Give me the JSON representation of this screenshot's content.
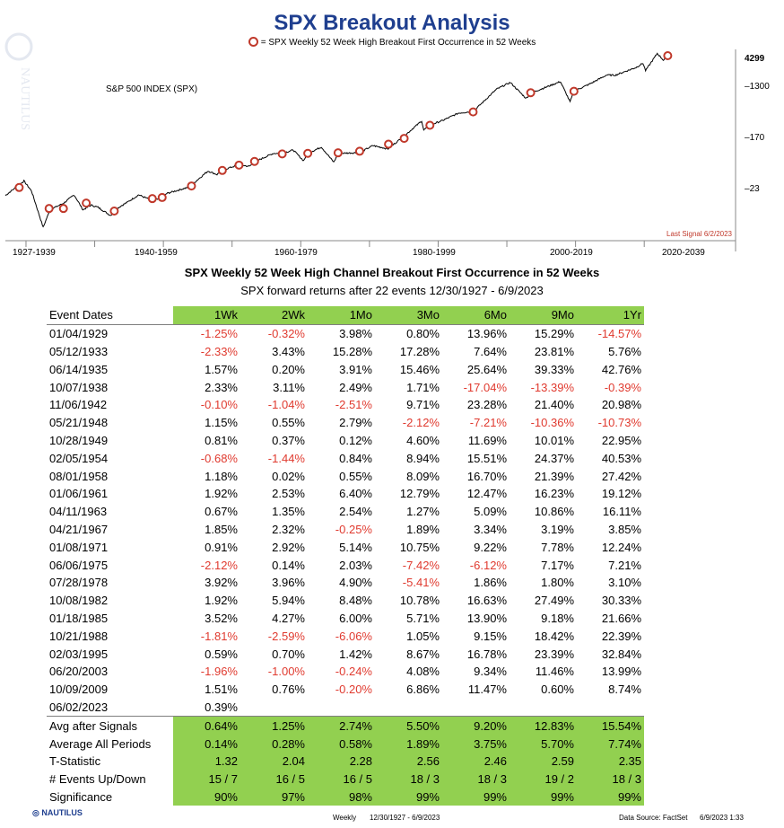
{
  "header": {
    "title": "SPX Breakout Analysis",
    "legend_text": "= SPX Weekly 52 Week High Breakout First Occurrence in 52 Weeks"
  },
  "chart_data": {
    "type": "line",
    "index_label": "S&P 500 INDEX (SPX)",
    "y_scale": "log",
    "y_ticks": [
      "4299",
      "1300",
      "170",
      "23"
    ],
    "x_decades": [
      "1927-1939",
      "1940-1959",
      "1960-1979",
      "1980-1999",
      "2000-2019",
      "2020-2039"
    ],
    "last_signal": "Last Signal 6/2/2023",
    "marker_color": "#c0392b",
    "line_color": "#000000",
    "approx_path": [
      [
        1927.0,
        17.5
      ],
      [
        1929.7,
        31
      ],
      [
        1930.8,
        21
      ],
      [
        1932.5,
        5
      ],
      [
        1933.5,
        10
      ],
      [
        1935.5,
        13
      ],
      [
        1937.0,
        18
      ],
      [
        1938.3,
        10
      ],
      [
        1939.5,
        12
      ],
      [
        1940.5,
        11
      ],
      [
        1942.3,
        8
      ],
      [
        1943.5,
        11
      ],
      [
        1945.0,
        14
      ],
      [
        1946.4,
        18
      ],
      [
        1948.0,
        15
      ],
      [
        1949.5,
        15
      ],
      [
        1950.5,
        19
      ],
      [
        1953.5,
        24
      ],
      [
        1954.0,
        26
      ],
      [
        1956.5,
        46
      ],
      [
        1957.8,
        40
      ],
      [
        1958.5,
        47
      ],
      [
        1961.0,
        59
      ],
      [
        1962.5,
        55
      ],
      [
        1963.3,
        66
      ],
      [
        1966.0,
        92
      ],
      [
        1967.3,
        92
      ],
      [
        1968.9,
        105
      ],
      [
        1970.4,
        69
      ],
      [
        1971.0,
        92
      ],
      [
        1973.0,
        118
      ],
      [
        1974.8,
        65
      ],
      [
        1975.5,
        92
      ],
      [
        1978.6,
        95
      ],
      [
        1980.5,
        125
      ],
      [
        1982.7,
        110
      ],
      [
        1985.0,
        180
      ],
      [
        1987.6,
        330
      ],
      [
        1987.9,
        230
      ],
      [
        1988.8,
        280
      ],
      [
        1990.5,
        330
      ],
      [
        1993.0,
        450
      ],
      [
        1995.1,
        480
      ],
      [
        1998.5,
        1150
      ],
      [
        2000.5,
        1500
      ],
      [
        2002.8,
        800
      ],
      [
        2003.5,
        990
      ],
      [
        2007.8,
        1550
      ],
      [
        2009.2,
        700
      ],
      [
        2009.8,
        1070
      ],
      [
        2012.0,
        1400
      ],
      [
        2014.5,
        2000
      ],
      [
        2015.8,
        2000
      ],
      [
        2018.8,
        2700
      ],
      [
        2019.8,
        3200
      ],
      [
        2020.2,
        2400
      ],
      [
        2021.9,
        4700
      ],
      [
        2022.8,
        3600
      ],
      [
        2023.4,
        4299
      ]
    ],
    "signal_dates": [
      1929.01,
      1933.36,
      1935.45,
      1938.77,
      1942.85,
      1948.39,
      1949.82,
      1954.09,
      1958.58,
      1961.01,
      1963.27,
      1967.3,
      1971.02,
      1975.43,
      1978.57,
      1982.77,
      1985.05,
      1988.8,
      1995.09,
      2003.47,
      2009.77,
      2023.42
    ],
    "signal_levels": [
      24,
      10.5,
      10.5,
      13,
      9.5,
      15.5,
      16.2,
      25.5,
      47,
      58,
      67,
      90,
      92,
      94,
      100,
      132,
      166,
      278,
      470,
      1000,
      1060,
      4299
    ]
  },
  "table": {
    "heading": "SPX Weekly 52 Week High Channel Breakout First Occurrence in 52 Weeks",
    "subheading": "SPX forward returns after 22 events 12/30/1927 - 6/9/2023",
    "columns": [
      "Event Dates",
      "1Wk",
      "2Wk",
      "1Mo",
      "3Mo",
      "6Mo",
      "9Mo",
      "1Yr"
    ],
    "rows": [
      [
        "01/04/1929",
        "-1.25%",
        "-0.32%",
        "3.98%",
        "0.80%",
        "13.96%",
        "15.29%",
        "-14.57%"
      ],
      [
        "05/12/1933",
        "-2.33%",
        "3.43%",
        "15.28%",
        "17.28%",
        "7.64%",
        "23.81%",
        "5.76%"
      ],
      [
        "06/14/1935",
        "1.57%",
        "0.20%",
        "3.91%",
        "15.46%",
        "25.64%",
        "39.33%",
        "42.76%"
      ],
      [
        "10/07/1938",
        "2.33%",
        "3.11%",
        "2.49%",
        "1.71%",
        "-17.04%",
        "-13.39%",
        "-0.39%"
      ],
      [
        "11/06/1942",
        "-0.10%",
        "-1.04%",
        "-2.51%",
        "9.71%",
        "23.28%",
        "21.40%",
        "20.98%"
      ],
      [
        "05/21/1948",
        "1.15%",
        "0.55%",
        "2.79%",
        "-2.12%",
        "-7.21%",
        "-10.36%",
        "-10.73%"
      ],
      [
        "10/28/1949",
        "0.81%",
        "0.37%",
        "0.12%",
        "4.60%",
        "11.69%",
        "10.01%",
        "22.95%"
      ],
      [
        "02/05/1954",
        "-0.68%",
        "-1.44%",
        "0.84%",
        "8.94%",
        "15.51%",
        "24.37%",
        "40.53%"
      ],
      [
        "08/01/1958",
        "1.18%",
        "0.02%",
        "0.55%",
        "8.09%",
        "16.70%",
        "21.39%",
        "27.42%"
      ],
      [
        "01/06/1961",
        "1.92%",
        "2.53%",
        "6.40%",
        "12.79%",
        "12.47%",
        "16.23%",
        "19.12%"
      ],
      [
        "04/11/1963",
        "0.67%",
        "1.35%",
        "2.54%",
        "1.27%",
        "5.09%",
        "10.86%",
        "16.11%"
      ],
      [
        "04/21/1967",
        "1.85%",
        "2.32%",
        "-0.25%",
        "1.89%",
        "3.34%",
        "3.19%",
        "3.85%"
      ],
      [
        "01/08/1971",
        "0.91%",
        "2.92%",
        "5.14%",
        "10.75%",
        "9.22%",
        "7.78%",
        "12.24%"
      ],
      [
        "06/06/1975",
        "-2.12%",
        "0.14%",
        "2.03%",
        "-7.42%",
        "-6.12%",
        "7.17%",
        "7.21%"
      ],
      [
        "07/28/1978",
        "3.92%",
        "3.96%",
        "4.90%",
        "-5.41%",
        "1.86%",
        "1.80%",
        "3.10%"
      ],
      [
        "10/08/1982",
        "1.92%",
        "5.94%",
        "8.48%",
        "10.78%",
        "16.63%",
        "27.49%",
        "30.33%"
      ],
      [
        "01/18/1985",
        "3.52%",
        "4.27%",
        "6.00%",
        "5.71%",
        "13.90%",
        "9.18%",
        "21.66%"
      ],
      [
        "10/21/1988",
        "-1.81%",
        "-2.59%",
        "-6.06%",
        "1.05%",
        "9.15%",
        "18.42%",
        "22.39%"
      ],
      [
        "02/03/1995",
        "0.59%",
        "0.70%",
        "1.42%",
        "8.67%",
        "16.78%",
        "23.39%",
        "32.84%"
      ],
      [
        "06/20/2003",
        "-1.96%",
        "-1.00%",
        "-0.24%",
        "4.08%",
        "9.34%",
        "11.46%",
        "13.99%"
      ],
      [
        "10/09/2009",
        "1.51%",
        "0.76%",
        "-0.20%",
        "6.86%",
        "11.47%",
        "0.60%",
        "8.74%"
      ],
      [
        "06/02/2023",
        "0.39%",
        "",
        "",
        "",
        "",
        "",
        ""
      ]
    ],
    "summary": [
      [
        "Avg after Signals",
        "0.64%",
        "1.25%",
        "2.74%",
        "5.50%",
        "9.20%",
        "12.83%",
        "15.54%"
      ],
      [
        "Average All Periods",
        "0.14%",
        "0.28%",
        "0.58%",
        "1.89%",
        "3.75%",
        "5.70%",
        "7.74%"
      ],
      [
        "T-Statistic",
        "1.32",
        "2.04",
        "2.28",
        "2.56",
        "2.46",
        "2.59",
        "2.35"
      ],
      [
        "# Events Up/Down",
        "15 / 7",
        "16 / 5",
        "16 / 5",
        "18 / 3",
        "18 / 3",
        "19 / 2",
        "18 / 3"
      ],
      [
        "Significance",
        "90%",
        "97%",
        "98%",
        "99%",
        "99%",
        "99%",
        "99%"
      ]
    ]
  },
  "footer": {
    "logo_text": "NAUTILUS",
    "periodicity": "Weekly",
    "range": "12/30/1927 - 6/9/2023",
    "source": "Data Source: FactSet",
    "timestamp": "6/9/2023 1:33"
  }
}
